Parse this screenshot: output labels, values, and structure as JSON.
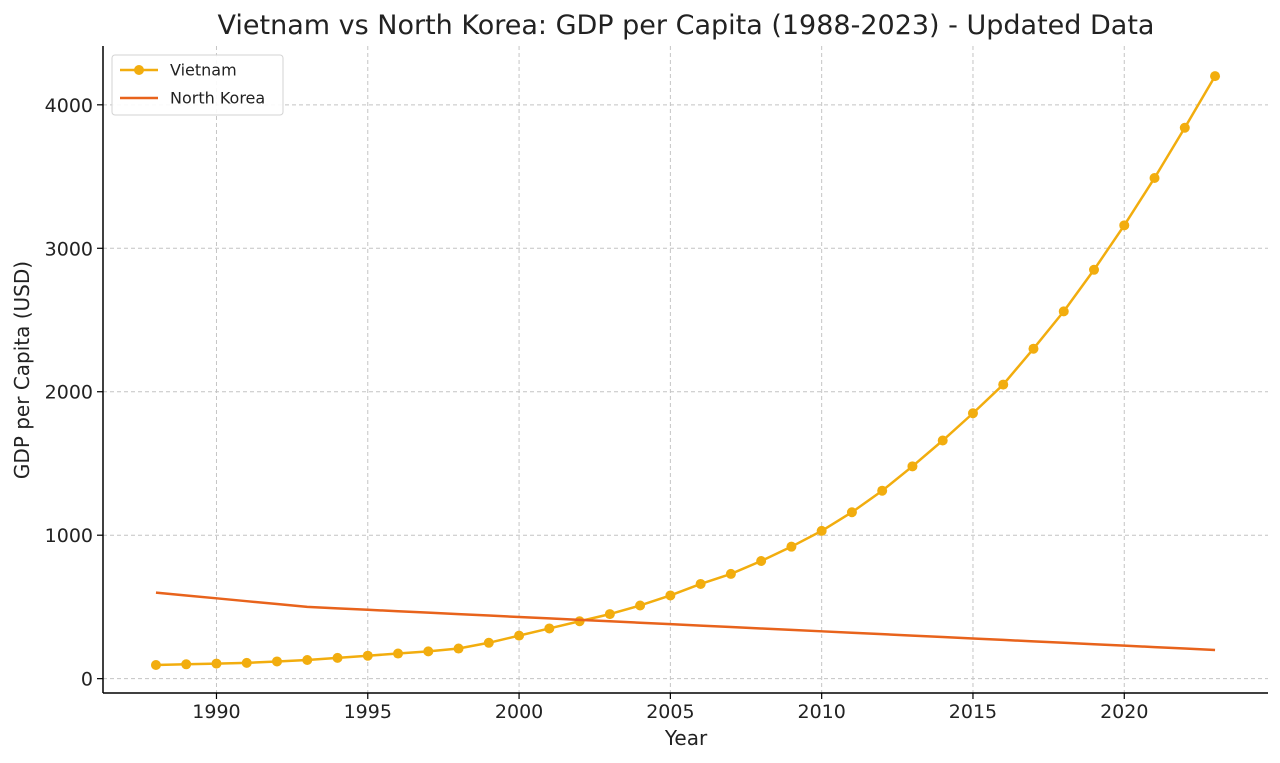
{
  "chart_data": {
    "type": "line",
    "title": "Vietnam vs North Korea: GDP per Capita (1988-2023) - Updated Data",
    "xlabel": "Year",
    "ylabel": "GDP per Capita (USD)",
    "xlim": [
      1986.25,
      2024.75
    ],
    "ylim": [
      -100,
      4410
    ],
    "xticks": [
      1990,
      1995,
      2000,
      2005,
      2010,
      2015,
      2020
    ],
    "yticks": [
      0,
      1000,
      2000,
      3000,
      4000
    ],
    "grid": true,
    "legend_position": "top-left",
    "x": [
      1988,
      1989,
      1990,
      1991,
      1992,
      1993,
      1994,
      1995,
      1996,
      1997,
      1998,
      1999,
      2000,
      2001,
      2002,
      2003,
      2004,
      2005,
      2006,
      2007,
      2008,
      2009,
      2010,
      2011,
      2012,
      2013,
      2014,
      2015,
      2016,
      2017,
      2018,
      2019,
      2020,
      2021,
      2022,
      2023
    ],
    "series": [
      {
        "name": "Vietnam",
        "color": "#f2ad0e",
        "marker": "circle",
        "values": [
          95,
          100,
          105,
          110,
          120,
          130,
          145,
          160,
          175,
          190,
          210,
          250,
          300,
          350,
          400,
          450,
          510,
          580,
          660,
          730,
          820,
          920,
          1030,
          1160,
          1310,
          1480,
          1660,
          1850,
          2050,
          2300,
          2560,
          2850,
          3160,
          3490,
          3840,
          4200
        ]
      },
      {
        "name": "North Korea",
        "color": "#e8631c",
        "marker": "none",
        "values": [
          600,
          580,
          560,
          540,
          520,
          500,
          490,
          480,
          470,
          460,
          450,
          440,
          430,
          420,
          410,
          400,
          390,
          380,
          370,
          360,
          350,
          340,
          330,
          320,
          310,
          300,
          290,
          280,
          270,
          260,
          250,
          240,
          230,
          220,
          210,
          200
        ]
      }
    ]
  }
}
